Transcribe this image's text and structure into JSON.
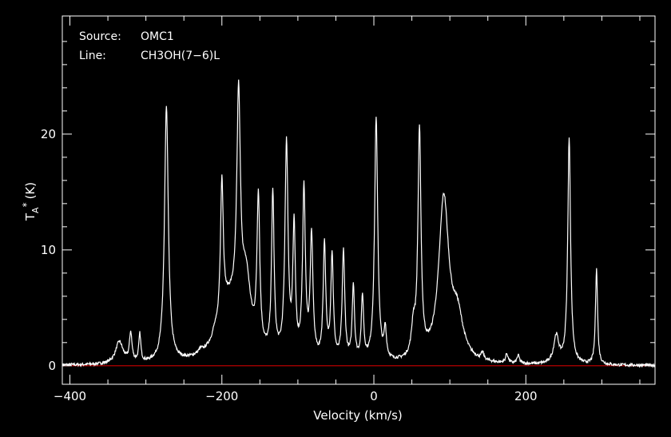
{
  "chart_data": {
    "type": "line",
    "title": "",
    "xlabel": "Velocity (km/s)",
    "ylabel": "T",
    "ylabel_sub": "A",
    "ylabel_sup": "*",
    "ylabel_unit": "(K)",
    "xlim": [
      -410,
      370
    ],
    "ylim": [
      -1.6,
      30.2
    ],
    "x_ticks": [
      -400,
      -200,
      0,
      200
    ],
    "x_tick_labels": [
      "−400",
      "−200",
      "0",
      "200"
    ],
    "y_ticks": [
      0,
      10,
      20
    ],
    "y_tick_labels": [
      "0",
      "10",
      "20"
    ],
    "grid": false,
    "annotations": {
      "source_label": "Source:",
      "source_value": "OMC1",
      "line_label": "Line:",
      "line_value": "CH3OH(7−6)L"
    },
    "baseline": {
      "y": 0,
      "color": "#cc0000"
    },
    "colors": {
      "background": "#000000",
      "axes": "#ffffff",
      "spectrum": "#ffffff",
      "baseline": "#cc0000"
    },
    "series": [
      {
        "components": [
          {
            "center": -335,
            "amp": 1.9,
            "width": 6
          },
          {
            "center": -320,
            "amp": 2.5,
            "width": 2
          },
          {
            "center": -308,
            "amp": 2.4,
            "width": 1.6
          },
          {
            "center": -273,
            "amp": 22.0,
            "width": 3
          },
          {
            "center": -228,
            "amp": 0.3,
            "width": 3
          },
          {
            "center": -210,
            "amp": 0.4,
            "width": 3
          },
          {
            "center": -200,
            "amp": 12.0,
            "width": 2.2
          },
          {
            "center": -190,
            "amp": 5.0,
            "width": 18
          },
          {
            "center": -178,
            "amp": 19.0,
            "width": 2.8
          },
          {
            "center": -168,
            "amp": 5.5,
            "width": 7
          },
          {
            "center": -152,
            "amp": 13.0,
            "width": 2.2
          },
          {
            "center": -133,
            "amp": 14.0,
            "width": 2
          },
          {
            "center": -115,
            "amp": 18.5,
            "width": 2.4
          },
          {
            "center": -105,
            "amp": 11.0,
            "width": 2
          },
          {
            "center": -92,
            "amp": 14.5,
            "width": 2.2
          },
          {
            "center": -82,
            "amp": 10.5,
            "width": 2.2
          },
          {
            "center": -65,
            "amp": 10.0,
            "width": 2
          },
          {
            "center": -55,
            "amp": 9.0,
            "width": 2
          },
          {
            "center": -40,
            "amp": 9.5,
            "width": 2
          },
          {
            "center": -27,
            "amp": 6.5,
            "width": 1.8
          },
          {
            "center": -15,
            "amp": 5.5,
            "width": 1.8
          },
          {
            "center": 3,
            "amp": 21.0,
            "width": 2.5
          },
          {
            "center": 15,
            "amp": 2.5,
            "width": 1.8
          },
          {
            "center": 52,
            "amp": 2.5,
            "width": 3
          },
          {
            "center": 60,
            "amp": 19.5,
            "width": 2.4
          },
          {
            "center": 92,
            "amp": 14.0,
            "width": 8
          },
          {
            "center": 110,
            "amp": 3.5,
            "width": 9
          },
          {
            "center": 143,
            "amp": 0.6,
            "width": 2
          },
          {
            "center": 175,
            "amp": 0.8,
            "width": 2
          },
          {
            "center": 190,
            "amp": 0.7,
            "width": 2
          },
          {
            "center": 240,
            "amp": 2.4,
            "width": 4
          },
          {
            "center": 257,
            "amp": 19.5,
            "width": 2.2
          },
          {
            "center": 293,
            "amp": 8.4,
            "width": 1.6
          }
        ]
      }
    ]
  }
}
